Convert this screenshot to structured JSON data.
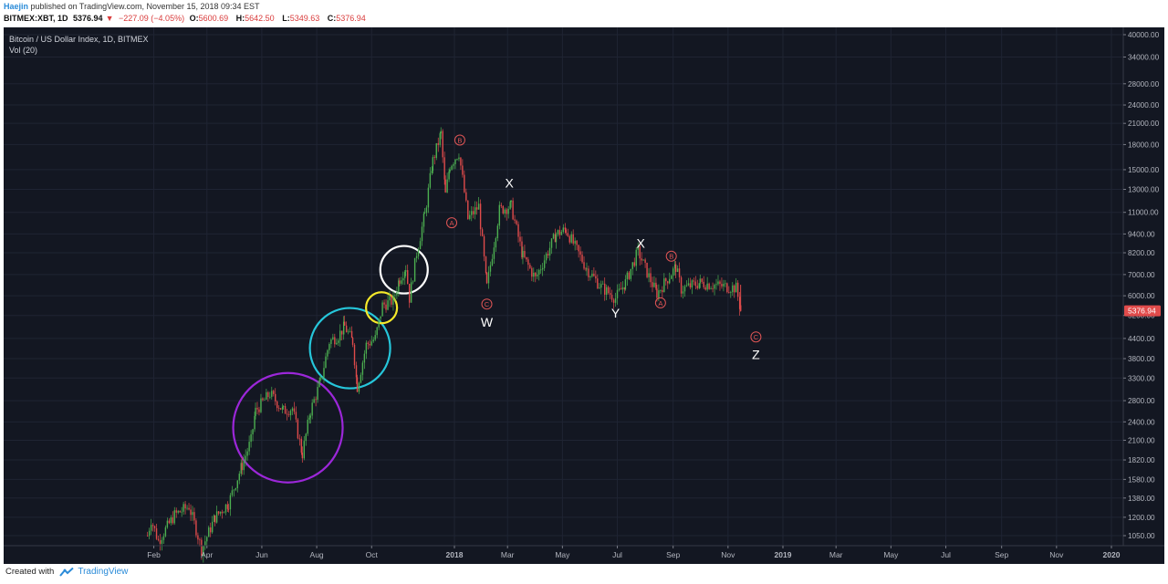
{
  "header": {
    "author": "Haejin",
    "published_text": "published on TradingView.com, November 15, 2018 09:34 EST"
  },
  "ohlc": {
    "symbol": "BITMEX:XBT, 1D",
    "last": "5376.94",
    "change_arrow": "▼",
    "change": "−227.09 (−4.05%)",
    "open_label": "O:",
    "open": "5600.69",
    "high_label": "H:",
    "high": "5642.50",
    "low_label": "L:",
    "low": "5349.63",
    "close_label": "C:",
    "close": "5376.94"
  },
  "footer": {
    "created_with": "Created with",
    "brand": "TradingView"
  },
  "colors": {
    "background": "#131722",
    "up": "#4caf50",
    "down": "#e04b4b",
    "wave_label": "#e05555",
    "price_tag": "#e04b4b"
  },
  "chart_data": {
    "type": "candlestick",
    "title": "Bitcoin / US Dollar Index, 1D, BITMEX",
    "indicator": "Vol (20)",
    "last_price_label": "5376.94",
    "y_scale": "log",
    "ylim": [
      1000,
      42000
    ],
    "y_ticks": [
      "40000.00",
      "34000.00",
      "28000.00",
      "24000.00",
      "21000.00",
      "18000.00",
      "15000.00",
      "13000.00",
      "11000.00",
      "9400.00",
      "8200.00",
      "7000.00",
      "6000.00",
      "5200.00",
      "4400.00",
      "3800.00",
      "3300.00",
      "2800.00",
      "2400.00",
      "2100.00",
      "1820.00",
      "1580.00",
      "1380.00",
      "1200.00",
      "1050.00"
    ],
    "x_ticks": [
      "Feb",
      "Apr",
      "Jun",
      "Aug",
      "Oct",
      "2018",
      "Mar",
      "May",
      "Jul",
      "Sep",
      "Nov",
      "2019",
      "Mar",
      "May",
      "Jul",
      "Sep",
      "Nov",
      "2020"
    ],
    "price_path": [
      [
        "2017-01-25",
        1050
      ],
      [
        "2017-01-29",
        1180
      ],
      [
        "2017-02-06",
        1010
      ],
      [
        "2017-02-24",
        1220
      ],
      [
        "2017-03-12",
        1300
      ],
      [
        "2017-03-20",
        1100
      ],
      [
        "2017-03-26",
        950
      ],
      [
        "2017-04-10",
        1200
      ],
      [
        "2017-04-25",
        1330
      ],
      [
        "2017-05-10",
        1750
      ],
      [
        "2017-05-20",
        2100
      ],
      [
        "2017-05-25",
        2600
      ],
      [
        "2017-06-10",
        2950
      ],
      [
        "2017-06-25",
        2600
      ],
      [
        "2017-07-05",
        2650
      ],
      [
        "2017-07-16",
        1900
      ],
      [
        "2017-07-25",
        2600
      ],
      [
        "2017-08-05",
        3200
      ],
      [
        "2017-08-15",
        4300
      ],
      [
        "2017-08-25",
        4500
      ],
      [
        "2017-09-01",
        4800
      ],
      [
        "2017-09-10",
        4300
      ],
      [
        "2017-09-15",
        3100
      ],
      [
        "2017-09-25",
        4200
      ],
      [
        "2017-10-05",
        4400
      ],
      [
        "2017-10-13",
        5600
      ],
      [
        "2017-10-25",
        5800
      ],
      [
        "2017-11-01",
        6800
      ],
      [
        "2017-11-08",
        7400
      ],
      [
        "2017-11-12",
        5900
      ],
      [
        "2017-11-20",
        8200
      ],
      [
        "2017-11-29",
        10800
      ],
      [
        "2017-12-08",
        16000
      ],
      [
        "2017-12-17",
        19500
      ],
      [
        "2017-12-22",
        12500
      ],
      [
        "2017-12-27",
        15500
      ],
      [
        "2018-01-06",
        17000
      ],
      [
        "2018-01-16",
        10500
      ],
      [
        "2018-01-28",
        11500
      ],
      [
        "2018-02-06",
        6400
      ],
      [
        "2018-02-20",
        11200
      ],
      [
        "2018-03-05",
        11500
      ],
      [
        "2018-03-18",
        8000
      ],
      [
        "2018-04-01",
        6800
      ],
      [
        "2018-04-24",
        9400
      ],
      [
        "2018-05-05",
        9700
      ],
      [
        "2018-05-28",
        7300
      ],
      [
        "2018-06-13",
        6400
      ],
      [
        "2018-06-29",
        5900
      ],
      [
        "2018-07-10",
        6600
      ],
      [
        "2018-07-24",
        8300
      ],
      [
        "2018-08-05",
        6900
      ],
      [
        "2018-08-14",
        6100
      ],
      [
        "2018-09-04",
        7400
      ],
      [
        "2018-09-10",
        6300
      ],
      [
        "2018-10-01",
        6600
      ],
      [
        "2018-10-15",
        6500
      ],
      [
        "2018-11-10",
        6350
      ],
      [
        "2018-11-14",
        5600
      ],
      [
        "2018-11-15",
        5376.94
      ]
    ],
    "annotations": [
      {
        "text": "A",
        "date": "2017-12-29",
        "price": 10200,
        "style": "circled"
      },
      {
        "text": "B",
        "date": "2018-01-07",
        "price": 18600,
        "style": "circled"
      },
      {
        "text": "C",
        "date": "2018-02-06",
        "price": 5650,
        "style": "circled"
      },
      {
        "text": "X",
        "date": "2018-03-03",
        "price": 13600,
        "style": "plain"
      },
      {
        "text": "W",
        "date": "2018-02-06",
        "price": 4950,
        "style": "plain"
      },
      {
        "text": "X",
        "date": "2018-07-27",
        "price": 8800,
        "style": "plain"
      },
      {
        "text": "Y",
        "date": "2018-06-29",
        "price": 5300,
        "style": "plain"
      },
      {
        "text": "A",
        "date": "2018-08-18",
        "price": 5700,
        "style": "circled"
      },
      {
        "text": "B",
        "date": "2018-08-30",
        "price": 8000,
        "style": "circled"
      },
      {
        "text": "C",
        "date": "2018-12-02",
        "price": 4450,
        "style": "circled"
      },
      {
        "text": "Z",
        "date": "2018-12-02",
        "price": 3920,
        "style": "plain"
      }
    ],
    "circles": [
      {
        "color": "#9c27d9",
        "date": "2017-06-30",
        "price": 2300
      },
      {
        "color": "#26c6da",
        "date": "2017-09-07",
        "price": 4100
      },
      {
        "color": "#f5e92a",
        "date": "2017-10-12",
        "price": 5500
      },
      {
        "color": "#ffffff",
        "date": "2017-11-06",
        "price": 7250
      }
    ]
  }
}
